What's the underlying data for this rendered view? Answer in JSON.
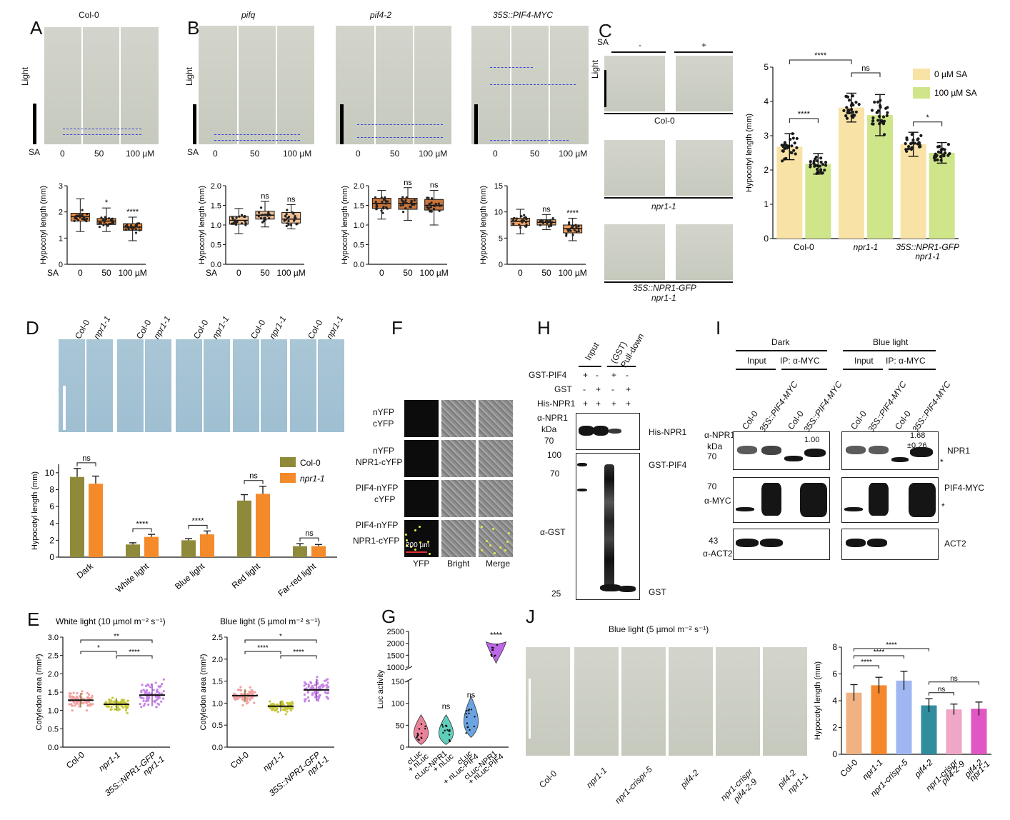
{
  "panels": {
    "A": {
      "letter": "A",
      "title": "Col-0",
      "light": "Light",
      "sa": "SA",
      "ticks": [
        "0",
        "50",
        "100 µM"
      ]
    },
    "B": {
      "letter": "B",
      "titles": [
        "pifq",
        "pif4-2",
        "35S::PIF4-MYC"
      ],
      "light": "Light",
      "sa": "SA",
      "ticks": [
        "0",
        "50",
        "100 µM"
      ]
    },
    "C": {
      "letter": "C",
      "sa": "SA",
      "minus": "-",
      "plus": "+",
      "light": "Light",
      "rows": [
        "Col-0",
        "npr1-1",
        "35S::NPR1-GFP",
        "npr1-1"
      ]
    },
    "D": {
      "letter": "D",
      "genos": [
        "Col-0",
        "npr1-1"
      ]
    },
    "E": {
      "letter": "E"
    },
    "F": {
      "letter": "F",
      "rows": [
        [
          "nYFP",
          "cYFP"
        ],
        [
          "nYFP",
          "NPR1-cYFP"
        ],
        [
          "PIF4-nYFP",
          "cYFP"
        ],
        [
          "PIF4-nYFP",
          "NPR1-cYFP"
        ]
      ],
      "cols": [
        "YFP",
        "Bright",
        "Merge"
      ],
      "scale": "200 µm"
    },
    "G": {
      "letter": "G"
    },
    "H": {
      "letter": "H",
      "input": "Input",
      "pulldown_1": "(GST)",
      "pulldown_2": "Pull-down",
      "rows": [
        "GST-PIF4",
        "GST",
        "His-NPR1"
      ],
      "signs": [
        [
          "+",
          "-",
          "+",
          "-"
        ],
        [
          "-",
          "+",
          "-",
          "+"
        ],
        [
          "+",
          "+",
          "+",
          "+"
        ]
      ],
      "antibody1": "α-NPR1",
      "kda": "kDa",
      "marker70": "70",
      "markers2": [
        "100",
        "70",
        "25"
      ],
      "antibody2": "α-GST",
      "bands": [
        "His-NPR1",
        "GST-PIF4",
        "GST"
      ]
    },
    "I": {
      "letter": "I",
      "conditions": [
        "Dark",
        "Blue light"
      ],
      "input": "Input",
      "ip": "IP: α-MYC",
      "lanes": [
        "Col-0",
        "35S::PIF4-MYC"
      ],
      "ab1": "α-NPR1",
      "kda": "kDa",
      "m70": "70",
      "m70b": "70",
      "m43": "43",
      "ab2": "α-MYC",
      "ab3": "α-ACT2",
      "ratio1": "1.00",
      "ratio2": "1.68",
      "ratio2b": "±0.26",
      "labels": [
        "NPR1",
        "PIF4-MYC",
        "ACT2"
      ],
      "star": "*"
    },
    "J": {
      "letter": "J",
      "title": "Blue light (5 µmol m⁻² s⁻¹)",
      "genos": [
        "Col-0",
        "npr1-1",
        "npr1-crispr-5",
        "pif4-2",
        "npr1-crispr",
        "pif4-2-9",
        "pif4-2",
        "npr1-1"
      ]
    }
  },
  "chart_data": [
    {
      "id": "A_box",
      "type": "box",
      "title": "",
      "xlabel": "SA",
      "ylabel": "Hypocotyl length (mm)",
      "categories": [
        "0",
        "50",
        "100 µM"
      ],
      "ylim": [
        0,
        3
      ],
      "yticks": [
        0,
        1,
        2,
        3
      ],
      "medians": [
        1.82,
        1.65,
        1.42
      ],
      "q1": [
        1.65,
        1.52,
        1.3
      ],
      "q3": [
        1.95,
        1.75,
        1.55
      ],
      "min": [
        1.25,
        1.25,
        0.9
      ],
      "max": [
        2.5,
        2.15,
        1.8
      ],
      "annotations": [
        "",
        "*",
        "****"
      ],
      "color": "#e8893a"
    },
    {
      "id": "B1_box",
      "type": "box",
      "ylabel": "Hypocotyl length (mm)",
      "xlabel": "SA",
      "categories": [
        "0",
        "50",
        "100 µM"
      ],
      "ylim": [
        0,
        2.0
      ],
      "yticks": [
        0.0,
        0.5,
        1.0,
        1.5,
        2.0
      ],
      "ytick_labels": [
        "0.0",
        "0.5",
        "1.0",
        "1.5",
        "2.0"
      ],
      "medians": [
        1.12,
        1.25,
        1.15
      ],
      "q1": [
        1.02,
        1.15,
        1.05
      ],
      "q3": [
        1.22,
        1.35,
        1.32
      ],
      "min": [
        0.78,
        0.95,
        0.9
      ],
      "max": [
        1.42,
        1.6,
        1.52
      ],
      "annotations": [
        "",
        "ns",
        "ns"
      ],
      "color": "#f0c095"
    },
    {
      "id": "B2_box",
      "type": "box",
      "ylabel": "Hypocotyl length (mm)",
      "categories": [
        "0",
        "50",
        "100 µM"
      ],
      "ylim": [
        0,
        2.0
      ],
      "yticks": [
        0.0,
        0.5,
        1.0,
        1.5,
        2.0
      ],
      "ytick_labels": [
        "0.0",
        "0.5",
        "1.0",
        "1.5",
        "2.0"
      ],
      "medians": [
        1.55,
        1.55,
        1.5
      ],
      "q1": [
        1.42,
        1.4,
        1.38
      ],
      "q3": [
        1.68,
        1.68,
        1.65
      ],
      "min": [
        1.15,
        1.12,
        1.0
      ],
      "max": [
        1.88,
        1.95,
        1.88
      ],
      "annotations": [
        "",
        "ns",
        "ns"
      ],
      "color": "#c8743a"
    },
    {
      "id": "B3_box",
      "type": "box",
      "ylabel": "Hypocotyl length (mm)",
      "categories": [
        "0",
        "50",
        "100 µM"
      ],
      "ylim": [
        0,
        15
      ],
      "yticks": [
        0,
        5,
        10,
        15
      ],
      "medians": [
        8.2,
        8.0,
        6.8
      ],
      "q1": [
        7.4,
        7.5,
        6.0
      ],
      "q3": [
        8.8,
        8.5,
        7.5
      ],
      "min": [
        5.8,
        6.6,
        4.5
      ],
      "max": [
        10.5,
        9.5,
        8.8
      ],
      "annotations": [
        "",
        "ns",
        "****"
      ],
      "color": "#f0a060"
    },
    {
      "id": "C_bar",
      "type": "bar",
      "ylabel": "Hypocotyl length (mm)",
      "categories": [
        "Col-0",
        "npr1-1",
        "35S::NPR1-GFP npr1-1"
      ],
      "series": [
        {
          "name": "0 µM SA",
          "values": [
            2.68,
            3.82,
            2.75
          ],
          "err": [
            0.38,
            0.42,
            0.35
          ],
          "color": "#f8e2a6"
        },
        {
          "name": "100 µM SA",
          "values": [
            2.18,
            3.6,
            2.5
          ],
          "err": [
            0.3,
            0.6,
            0.3
          ],
          "color": "#cfe58a"
        }
      ],
      "ylim": [
        0,
        5
      ],
      "yticks": [
        0,
        1,
        2,
        3,
        4,
        5
      ],
      "annotations": [
        "****",
        "****",
        "ns",
        "*"
      ]
    },
    {
      "id": "D_bar",
      "type": "bar",
      "ylabel": "Hypocotyl length (mm)",
      "categories": [
        "Dark",
        "White light",
        "Blue light",
        "Red light",
        "Far-red light"
      ],
      "series": [
        {
          "name": "Col-0",
          "values": [
            9.5,
            1.5,
            2.0,
            6.7,
            1.3
          ],
          "err": [
            1.0,
            0.2,
            0.2,
            0.7,
            0.3
          ],
          "color": "#8f8a3a"
        },
        {
          "name": "npr1-1",
          "values": [
            8.7,
            2.4,
            2.7,
            7.5,
            1.3
          ],
          "err": [
            0.9,
            0.3,
            0.4,
            0.9,
            0.2
          ],
          "color": "#f58a2a"
        }
      ],
      "ylim": [
        0,
        11
      ],
      "yticks": [
        0,
        2,
        4,
        6,
        8,
        10
      ],
      "annotations": [
        "ns",
        "****",
        "****",
        "ns",
        "ns"
      ]
    },
    {
      "id": "E1_dot",
      "type": "scatter",
      "title": "White light (10 µmol m⁻² s⁻¹)",
      "ylabel": "Cotyledon area (mm²)",
      "categories": [
        "Col-0",
        "npr1-1",
        "35S::NPR1-GFP npr1-1"
      ],
      "means": [
        1.28,
        1.17,
        1.42
      ],
      "sd": [
        0.2,
        0.17,
        0.3
      ],
      "ylim": [
        0,
        3.0
      ],
      "yticks": [
        0.0,
        0.5,
        1.0,
        1.5,
        2.0,
        2.5,
        3.0
      ],
      "ytick_labels": [
        "0.0",
        "0.5",
        "1.0",
        "1.5",
        "2.0",
        "2.5",
        "3.0"
      ],
      "colors": [
        "#f2a0a0",
        "#c6c63a",
        "#c585e6"
      ],
      "annotations": [
        "**",
        "*",
        "****"
      ]
    },
    {
      "id": "E2_dot",
      "type": "scatter",
      "title": "Blue light (5 µmol m⁻² s⁻¹)",
      "ylabel": "Cotyledon area (mm²)",
      "categories": [
        "Col-0",
        "npr1-1",
        "35S::NPR1-GFP npr1-1"
      ],
      "means": [
        1.17,
        0.93,
        1.3
      ],
      "sd": [
        0.15,
        0.12,
        0.25
      ],
      "ylim": [
        0,
        2.5
      ],
      "yticks": [
        0.0,
        0.5,
        1.0,
        1.5,
        2.0,
        2.5
      ],
      "ytick_labels": [
        "0.0",
        "0.5",
        "1.0",
        "1.5",
        "2.0",
        "2.5"
      ],
      "colors": [
        "#f2a0a0",
        "#c6c63a",
        "#c585e6"
      ],
      "annotations": [
        "*",
        "****",
        "****"
      ]
    },
    {
      "id": "G_violin",
      "type": "violin",
      "ylabel": "Luc activity",
      "categories": [
        "cLuc + nLuc",
        "cLuc-NPR1 + nLuc",
        "cLuc + nLuc-PIF4",
        "cLuc-NPR1 + nLuc-PIF4"
      ],
      "lower_ticks": [
        0,
        50,
        100,
        150
      ],
      "upper_ticks": [
        1000,
        1500,
        2000,
        2500
      ],
      "medians": [
        32,
        32,
        58,
        1700
      ],
      "colors": [
        "#e35a78",
        "#2abfa5",
        "#3a86d6",
        "#b24ce6"
      ],
      "annotations": [
        "",
        "ns",
        "ns",
        "****"
      ]
    },
    {
      "id": "J_bar",
      "type": "bar",
      "ylabel": "Hypocotyl length (mm)",
      "categories": [
        "Col-0",
        "npr1-1",
        "npr1-crispr-5",
        "pif4-2",
        "npr1-crispr pif4-2-9",
        "pif4-2 npr1-1"
      ],
      "values": [
        4.6,
        5.15,
        5.5,
        3.65,
        3.35,
        3.4
      ],
      "err": [
        0.6,
        0.6,
        0.7,
        0.5,
        0.4,
        0.5
      ],
      "colors": [
        "#f0b283",
        "#f5872d",
        "#9fb6f2",
        "#2f8d9e",
        "#f0a6c6",
        "#e056c3"
      ],
      "ylim": [
        0,
        8
      ],
      "yticks": [
        0,
        2,
        4,
        6,
        8
      ],
      "annotations": [
        "****",
        "****",
        "****",
        "ns",
        "ns"
      ]
    }
  ]
}
